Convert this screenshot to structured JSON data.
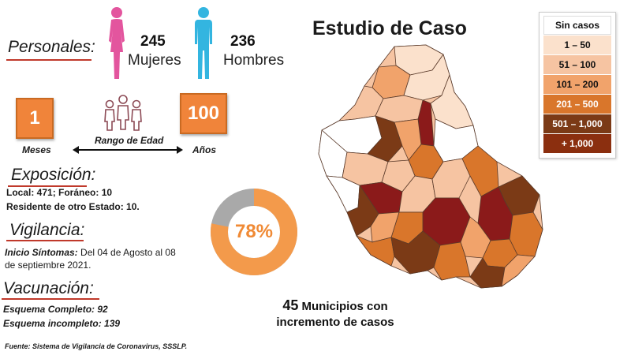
{
  "personales": {
    "title": "Personales:",
    "women_count": "245",
    "women_label": "Mujeres",
    "men_count": "236",
    "men_label": "Hombres"
  },
  "edad": {
    "min_value": "1",
    "min_label": "Meses",
    "range_label": "Rango de Edad",
    "max_value": "100",
    "max_label": "Años"
  },
  "exposicion": {
    "title": "Exposición:",
    "line1": "Local:  471; Foráneo: 10",
    "line2": "Residente de otro Estado: 10."
  },
  "vigilancia": {
    "title": "Vigilancia:",
    "label": "Inicio Síntomas:",
    "text_a": " Del 04 de Agosto al 08",
    "text_b": "de septiembre 2021."
  },
  "vacunacion": {
    "title": "Vacunación:",
    "line1": "Esquema Completo: 92",
    "line2": "Esquema incompleto: 139"
  },
  "donut": {
    "percent": 78,
    "label": "78%",
    "colors": {
      "fill": "#f39a4b",
      "rest": "#a9a9a9"
    }
  },
  "map": {
    "title": "Estudio de Caso"
  },
  "municipios": {
    "count": "45",
    "line1": " Municipios con",
    "line2": "incremento de casos"
  },
  "legend": [
    {
      "label": "Sin casos",
      "color": "#ffffff",
      "text": "#111111"
    },
    {
      "label": "1 – 50",
      "color": "#fbe1cc",
      "text": "#111111"
    },
    {
      "label": "51 – 100",
      "color": "#f6c4a2",
      "text": "#111111"
    },
    {
      "label": "101 – 200",
      "color": "#f1a36b",
      "text": "#111111"
    },
    {
      "label": "201 – 500",
      "color": "#d9762b",
      "text": "#ffffff"
    },
    {
      "label": "501 – 1,000",
      "color": "#7b3a16",
      "text": "#ffffff"
    },
    {
      "label": "+ 1,000",
      "color": "#8b2f0f",
      "text": "#ffffff"
    }
  ],
  "footer": {
    "source": "Fuente: Sistema de Vigilancia de Coronavirus, SSSLP."
  }
}
